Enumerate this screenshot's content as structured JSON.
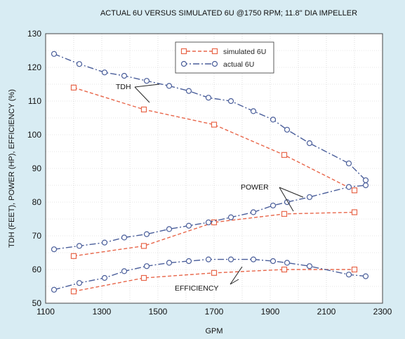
{
  "colors": {
    "background": "#d8ecf3",
    "plot_bg": "#ffffff",
    "simulated": "#e8664a",
    "actual": "#4a5e9a",
    "grid": "#c9c9c9"
  },
  "chart_data": {
    "type": "line",
    "title": "ACTUAL 6U VERSUS SIMULATED 6U @1750 RPM; 11.8'' DIA IMPELLER",
    "xlabel": "GPM",
    "ylabel": "TDH (FEET), POWER (HP), EFFICIENCY (%)",
    "xlim": [
      1100,
      2300
    ],
    "ylim": [
      50,
      130
    ],
    "xticks": [
      1100,
      1300,
      1500,
      1700,
      1900,
      2100,
      2300
    ],
    "yticks": [
      50,
      60,
      70,
      80,
      90,
      100,
      110,
      120,
      130
    ],
    "grid": true,
    "legend_position": "top-center",
    "legend": [
      "simulated 6U",
      "actual 6U"
    ],
    "series": [
      {
        "name": "simulated 6U",
        "curve": "TDH",
        "style": "dashed",
        "color": "#e8664a",
        "x": [
          1200,
          1450,
          1700,
          1950,
          2200
        ],
        "y": [
          114,
          107.5,
          103,
          94,
          83.5
        ]
      },
      {
        "name": "simulated 6U",
        "curve": "POWER",
        "style": "dashed",
        "color": "#e8664a",
        "x": [
          1200,
          1450,
          1700,
          1950,
          2200
        ],
        "y": [
          64,
          67,
          74,
          76.5,
          77
        ]
      },
      {
        "name": "simulated 6U",
        "curve": "EFFICIENCY",
        "style": "dashed",
        "color": "#e8664a",
        "x": [
          1200,
          1450,
          1700,
          1950,
          2200
        ],
        "y": [
          53.5,
          57.5,
          59,
          60,
          60
        ]
      },
      {
        "name": "actual 6U",
        "curve": "TDH",
        "style": "dashdot",
        "color": "#4a5e9a",
        "x": [
          1130,
          1220,
          1310,
          1380,
          1460,
          1540,
          1610,
          1680,
          1760,
          1840,
          1910,
          1960,
          2040,
          2180,
          2240
        ],
        "y": [
          124,
          121,
          118.5,
          117.5,
          116,
          114.5,
          113,
          111,
          110,
          107,
          104.5,
          101.5,
          97.5,
          91.5,
          86.5
        ]
      },
      {
        "name": "actual 6U",
        "curve": "POWER",
        "style": "dashdot",
        "color": "#4a5e9a",
        "x": [
          1130,
          1220,
          1310,
          1380,
          1460,
          1540,
          1610,
          1680,
          1760,
          1840,
          1910,
          1960,
          2040,
          2180,
          2240
        ],
        "y": [
          66,
          67,
          68,
          69.5,
          70.5,
          72,
          73,
          74,
          75.5,
          77,
          79,
          80,
          81.5,
          84.5,
          85
        ]
      },
      {
        "name": "actual 6U",
        "curve": "EFFICIENCY",
        "style": "dashdot",
        "color": "#4a5e9a",
        "x": [
          1130,
          1220,
          1310,
          1380,
          1460,
          1540,
          1610,
          1680,
          1760,
          1840,
          1910,
          1960,
          2040,
          2180,
          2240
        ],
        "y": [
          54,
          56,
          57.5,
          59.5,
          61,
          62,
          62.5,
          63,
          63,
          63,
          62.5,
          62,
          61,
          58.5,
          58
        ]
      }
    ],
    "annotations": [
      "TDH",
      "POWER",
      "EFFICIENCY"
    ]
  }
}
